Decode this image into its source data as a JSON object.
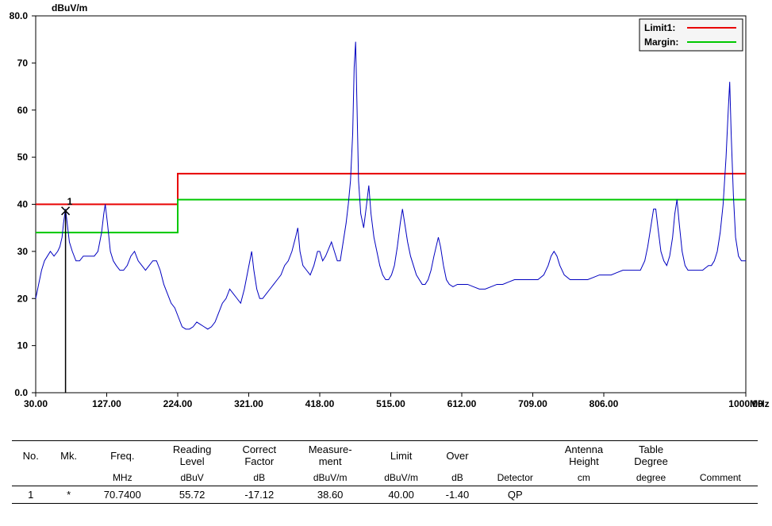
{
  "chart": {
    "type": "line-spectrum",
    "background_color": "#ffffff",
    "axis_color": "#000000",
    "grid_color": "#cccccc",
    "marker_color": "#000000",
    "font_family": "Arial",
    "label_fontsize": 12,
    "tick_fontsize": 12,
    "y_axis": {
      "label": "dBuV/m",
      "min": 0.0,
      "max": 80.0,
      "tick_step": 10,
      "top_tick_label": "80.0",
      "bottom_tick_label": "0.0"
    },
    "x_axis": {
      "label": "MHz",
      "min": 30.0,
      "max": 1000.0,
      "ticks": [
        30.0,
        127.0,
        224.0,
        321.0,
        418.0,
        515.0,
        612.0,
        709.0,
        806.0,
        1000.0
      ],
      "tick_labels": [
        "30.00",
        "127.00",
        "224.00",
        "321.00",
        "418.00",
        "515.00",
        "612.00",
        "709.00",
        "806.00",
        "1000.00"
      ]
    },
    "legend": {
      "background": "#f5f5f5",
      "border": "#000000",
      "items": [
        {
          "label": "Limit1:",
          "color": "#e80000",
          "width": 2
        },
        {
          "label": "Margin:",
          "color": "#00c800",
          "width": 2
        }
      ]
    },
    "limit_line": {
      "color": "#e80000",
      "width": 2,
      "points": [
        [
          30,
          40
        ],
        [
          224,
          40
        ],
        [
          224,
          46.5
        ],
        [
          1000,
          46.5
        ]
      ]
    },
    "margin_line": {
      "color": "#00c800",
      "width": 2,
      "points": [
        [
          30,
          34
        ],
        [
          224,
          34
        ],
        [
          224,
          41
        ],
        [
          1000,
          41
        ]
      ]
    },
    "marker": {
      "label": "1",
      "freq": 70.74,
      "level": 38.6,
      "bar_to_zero": true
    },
    "trace": {
      "color": "#0000c0",
      "width": 1,
      "points": [
        [
          30,
          20
        ],
        [
          34,
          23
        ],
        [
          38,
          26
        ],
        [
          42,
          28
        ],
        [
          46,
          29
        ],
        [
          50,
          30
        ],
        [
          55,
          29
        ],
        [
          60,
          30
        ],
        [
          63,
          31
        ],
        [
          66,
          33
        ],
        [
          68,
          36
        ],
        [
          70.74,
          39
        ],
        [
          73,
          36
        ],
        [
          76,
          32
        ],
        [
          80,
          30
        ],
        [
          85,
          28
        ],
        [
          90,
          28
        ],
        [
          95,
          29
        ],
        [
          100,
          29
        ],
        [
          105,
          29
        ],
        [
          110,
          29
        ],
        [
          115,
          30
        ],
        [
          120,
          34
        ],
        [
          123,
          38
        ],
        [
          125,
          40
        ],
        [
          128,
          36
        ],
        [
          132,
          30
        ],
        [
          136,
          28
        ],
        [
          140,
          27
        ],
        [
          145,
          26
        ],
        [
          150,
          26
        ],
        [
          155,
          27
        ],
        [
          160,
          29
        ],
        [
          165,
          30
        ],
        [
          170,
          28
        ],
        [
          175,
          27
        ],
        [
          180,
          26
        ],
        [
          185,
          27
        ],
        [
          190,
          28
        ],
        [
          195,
          28
        ],
        [
          200,
          26
        ],
        [
          205,
          23
        ],
        [
          210,
          21
        ],
        [
          215,
          19
        ],
        [
          220,
          18
        ],
        [
          225,
          16
        ],
        [
          230,
          14
        ],
        [
          235,
          13.5
        ],
        [
          240,
          13.5
        ],
        [
          245,
          14
        ],
        [
          250,
          15
        ],
        [
          255,
          14.5
        ],
        [
          260,
          14
        ],
        [
          265,
          13.5
        ],
        [
          270,
          14
        ],
        [
          275,
          15
        ],
        [
          280,
          17
        ],
        [
          285,
          19
        ],
        [
          290,
          20
        ],
        [
          295,
          22
        ],
        [
          300,
          21
        ],
        [
          305,
          20
        ],
        [
          310,
          19
        ],
        [
          315,
          22
        ],
        [
          320,
          26
        ],
        [
          325,
          30
        ],
        [
          328,
          26
        ],
        [
          332,
          22
        ],
        [
          336,
          20
        ],
        [
          340,
          20
        ],
        [
          345,
          21
        ],
        [
          350,
          22
        ],
        [
          355,
          23
        ],
        [
          360,
          24
        ],
        [
          365,
          25
        ],
        [
          370,
          27
        ],
        [
          375,
          28
        ],
        [
          380,
          30
        ],
        [
          385,
          33
        ],
        [
          388,
          35
        ],
        [
          391,
          30
        ],
        [
          395,
          27
        ],
        [
          400,
          26
        ],
        [
          405,
          25
        ],
        [
          410,
          27
        ],
        [
          415,
          30
        ],
        [
          418,
          30
        ],
        [
          422,
          28
        ],
        [
          426,
          29
        ],
        [
          430,
          30.5
        ],
        [
          434,
          32
        ],
        [
          438,
          30
        ],
        [
          442,
          28
        ],
        [
          446,
          28
        ],
        [
          450,
          32
        ],
        [
          454,
          36
        ],
        [
          457,
          40
        ],
        [
          460,
          45
        ],
        [
          463,
          55
        ],
        [
          465,
          69
        ],
        [
          467,
          74.5
        ],
        [
          469,
          60
        ],
        [
          471,
          45
        ],
        [
          474,
          38
        ],
        [
          478,
          35
        ],
        [
          482,
          40
        ],
        [
          485,
          44
        ],
        [
          488,
          38
        ],
        [
          492,
          33
        ],
        [
          496,
          30
        ],
        [
          500,
          27
        ],
        [
          504,
          25
        ],
        [
          508,
          24
        ],
        [
          512,
          24
        ],
        [
          516,
          25
        ],
        [
          520,
          27
        ],
        [
          524,
          31
        ],
        [
          528,
          36
        ],
        [
          531,
          39
        ],
        [
          534,
          36
        ],
        [
          538,
          32
        ],
        [
          542,
          29
        ],
        [
          546,
          27
        ],
        [
          550,
          25
        ],
        [
          554,
          24
        ],
        [
          558,
          23
        ],
        [
          562,
          23
        ],
        [
          566,
          24
        ],
        [
          570,
          26
        ],
        [
          574,
          29
        ],
        [
          577,
          31
        ],
        [
          580,
          33
        ],
        [
          583,
          31
        ],
        [
          587,
          27
        ],
        [
          591,
          24
        ],
        [
          595,
          23
        ],
        [
          600,
          22.5
        ],
        [
          606,
          23
        ],
        [
          612,
          23
        ],
        [
          620,
          23
        ],
        [
          628,
          22.5
        ],
        [
          636,
          22
        ],
        [
          644,
          22
        ],
        [
          652,
          22.5
        ],
        [
          660,
          23
        ],
        [
          668,
          23
        ],
        [
          676,
          23.5
        ],
        [
          684,
          24
        ],
        [
          692,
          24
        ],
        [
          700,
          24
        ],
        [
          708,
          24
        ],
        [
          716,
          24
        ],
        [
          724,
          25
        ],
        [
          730,
          27
        ],
        [
          734,
          29
        ],
        [
          738,
          30
        ],
        [
          742,
          29
        ],
        [
          746,
          27
        ],
        [
          752,
          25
        ],
        [
          760,
          24
        ],
        [
          768,
          24
        ],
        [
          776,
          24
        ],
        [
          784,
          24
        ],
        [
          792,
          24.5
        ],
        [
          800,
          25
        ],
        [
          808,
          25
        ],
        [
          816,
          25
        ],
        [
          824,
          25.5
        ],
        [
          832,
          26
        ],
        [
          840,
          26
        ],
        [
          848,
          26
        ],
        [
          856,
          26
        ],
        [
          862,
          28
        ],
        [
          866,
          31
        ],
        [
          870,
          35
        ],
        [
          874,
          39
        ],
        [
          877,
          39
        ],
        [
          880,
          35
        ],
        [
          884,
          30
        ],
        [
          888,
          28
        ],
        [
          892,
          27
        ],
        [
          896,
          29
        ],
        [
          900,
          33
        ],
        [
          903,
          38
        ],
        [
          906,
          41
        ],
        [
          909,
          36
        ],
        [
          913,
          30
        ],
        [
          917,
          27
        ],
        [
          921,
          26
        ],
        [
          925,
          26
        ],
        [
          929,
          26
        ],
        [
          933,
          26
        ],
        [
          937,
          26
        ],
        [
          941,
          26
        ],
        [
          945,
          26.5
        ],
        [
          949,
          27
        ],
        [
          953,
          27
        ],
        [
          957,
          28
        ],
        [
          961,
          30
        ],
        [
          965,
          34
        ],
        [
          969,
          40
        ],
        [
          973,
          50
        ],
        [
          976,
          60
        ],
        [
          978,
          66
        ],
        [
          980,
          55
        ],
        [
          983,
          42
        ],
        [
          986,
          33
        ],
        [
          990,
          29
        ],
        [
          994,
          28
        ],
        [
          998,
          28
        ],
        [
          1000,
          28
        ]
      ]
    }
  },
  "table": {
    "headers": [
      "No.",
      "Mk.",
      "Freq.",
      "Reading Level",
      "Correct Factor",
      "Measure- ment",
      "Limit",
      "Over",
      "",
      "Antenna Height",
      "Table Degree",
      ""
    ],
    "units": [
      "",
      "",
      "MHz",
      "dBuV",
      "dB",
      "dBuV/m",
      "dBuV/m",
      "dB",
      "Detector",
      "cm",
      "degree",
      "Comment"
    ],
    "rows": [
      [
        "1",
        "*",
        "70.7400",
        "55.72",
        "-17.12",
        "38.60",
        "40.00",
        "-1.40",
        "QP",
        "",
        "",
        ""
      ]
    ]
  }
}
